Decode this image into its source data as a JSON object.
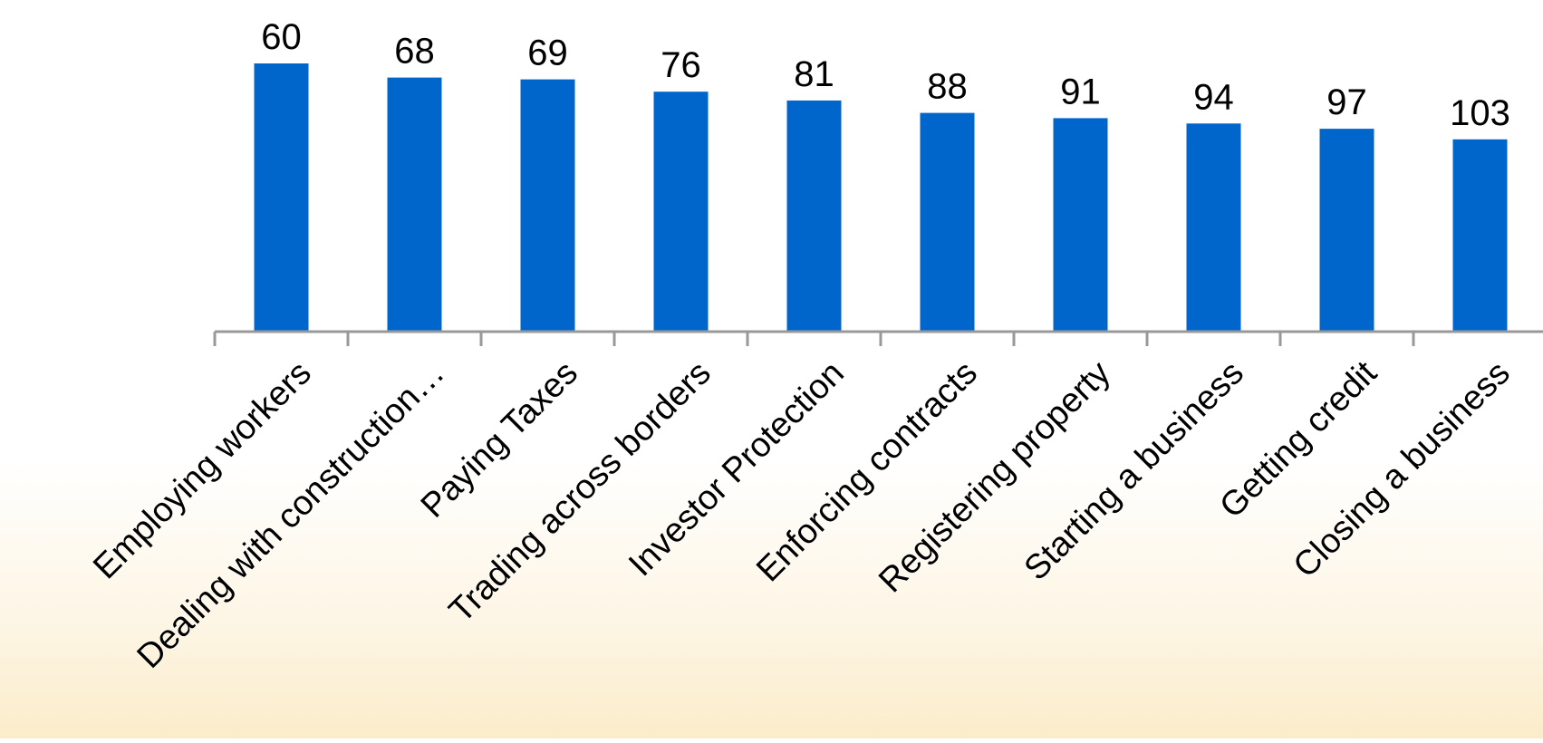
{
  "chart_data": {
    "type": "bar",
    "categories": [
      "Employing workers",
      "Dealing with construction…",
      "Paying Taxes",
      "Trading across borders",
      "Investor Protection",
      "Enforcing contracts",
      "Registering property",
      "Starting a business",
      "Getting credit",
      "Closing a business"
    ],
    "values": [
      60,
      68,
      69,
      76,
      81,
      88,
      91,
      94,
      97,
      103
    ],
    "value_labels": [
      "60",
      "68",
      "69",
      "76",
      "81",
      "88",
      "91",
      "94",
      "97",
      "103"
    ],
    "title": "",
    "xlabel": "",
    "ylabel": "",
    "y_axis": "reversed, hidden",
    "grid": false,
    "legend": "none",
    "colors": {
      "bar": "#0066cc",
      "axis": "#999999",
      "text": "#000000"
    }
  }
}
